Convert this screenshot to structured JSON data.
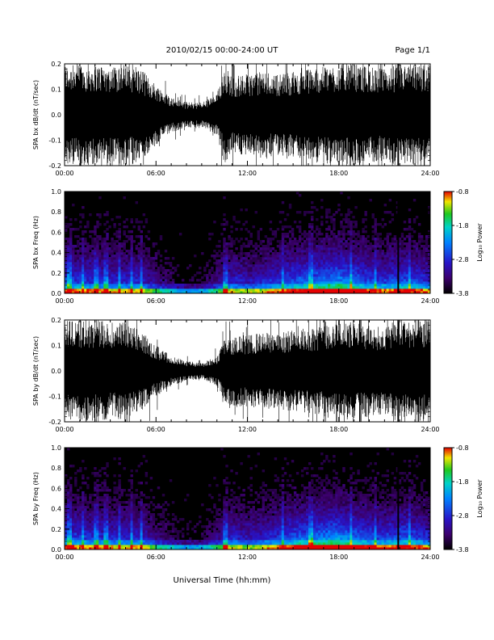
{
  "header": {
    "date_range": "2010/02/15  00:00-24:00 UT",
    "page": "Page 1/1"
  },
  "footer": {
    "xlabel": "Universal Time (hh:mm)"
  },
  "chart_data": [
    {
      "type": "line",
      "id": "bx-dbdt",
      "ylabel": "SPA bx dB/dt (nT/sec)",
      "xlim": [
        0,
        24
      ],
      "ylim": [
        -0.2,
        0.2
      ],
      "xticks": [
        "00:00",
        "06:00",
        "12:00",
        "18:00",
        "24:00"
      ],
      "yticks": [
        "-0.2",
        "-0.1",
        "0.0",
        "0.1",
        "0.2"
      ],
      "envelope": {
        "x": [
          0,
          1,
          2,
          3,
          4,
          5,
          6,
          7,
          8,
          9,
          10,
          10.5,
          11,
          12,
          13,
          14,
          15,
          16,
          17,
          18,
          19,
          20,
          21,
          21.8,
          22,
          23,
          24
        ],
        "amp": [
          0.2,
          0.2,
          0.2,
          0.19,
          0.2,
          0.18,
          0.12,
          0.07,
          0.05,
          0.05,
          0.08,
          0.2,
          0.15,
          0.16,
          0.17,
          0.16,
          0.17,
          0.18,
          0.19,
          0.2,
          0.2,
          0.19,
          0.18,
          0.2,
          0.2,
          0.2,
          0.2
        ]
      }
    },
    {
      "type": "heatmap",
      "id": "bx-spectrogram",
      "ylabel": "SPA bx Freq (Hz)",
      "xlim": [
        0,
        24
      ],
      "ylim": [
        0,
        1
      ],
      "xticks": [
        "00:00",
        "06:00",
        "12:00",
        "18:00",
        "24:00"
      ],
      "yticks": [
        "0.0",
        "0.2",
        "0.4",
        "0.6",
        "0.8",
        "1.0"
      ],
      "colorbar": {
        "label": "Log₁₀ Power",
        "ticks": [
          "-0.8",
          "-1.8",
          "-2.8",
          "-3.8"
        ],
        "range": [
          -3.8,
          -0.8
        ]
      }
    },
    {
      "type": "line",
      "id": "by-dbdt",
      "ylabel": "SPA by dB/dt (nT/sec)",
      "xlim": [
        0,
        24
      ],
      "ylim": [
        -0.2,
        0.2
      ],
      "xticks": [
        "00:00",
        "06:00",
        "12:00",
        "18:00",
        "24:00"
      ],
      "yticks": [
        "-0.2",
        "-0.1",
        "0.0",
        "0.1",
        "0.2"
      ],
      "envelope": {
        "x": [
          0,
          1,
          2,
          3,
          4,
          5,
          6,
          7,
          8,
          9,
          10,
          10.5,
          11,
          12,
          13,
          14,
          15,
          16,
          17,
          18,
          19,
          20,
          21,
          21.8,
          22,
          23,
          24
        ],
        "amp": [
          0.2,
          0.2,
          0.2,
          0.19,
          0.19,
          0.16,
          0.1,
          0.06,
          0.04,
          0.03,
          0.06,
          0.12,
          0.14,
          0.14,
          0.15,
          0.15,
          0.16,
          0.17,
          0.18,
          0.2,
          0.19,
          0.18,
          0.17,
          0.2,
          0.2,
          0.2,
          0.2
        ]
      }
    },
    {
      "type": "heatmap",
      "id": "by-spectrogram",
      "ylabel": "SPA by Freq (Hz)",
      "xlim": [
        0,
        24
      ],
      "ylim": [
        0,
        1
      ],
      "xticks": [
        "00:00",
        "06:00",
        "12:00",
        "18:00",
        "24:00"
      ],
      "yticks": [
        "0.0",
        "0.2",
        "0.4",
        "0.6",
        "0.8",
        "1.0"
      ],
      "colorbar": {
        "label": "Log₁₀ Power",
        "ticks": [
          "-0.8",
          "-1.8",
          "-2.8",
          "-3.8"
        ],
        "range": [
          -3.8,
          -0.8
        ]
      }
    }
  ]
}
